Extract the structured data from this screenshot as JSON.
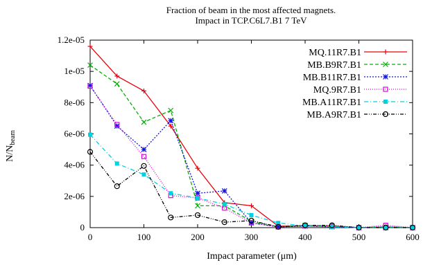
{
  "chart_data": {
    "type": "line",
    "title": "Fraction of beam in the most affected magnets.",
    "subtitle": "Impact in TCP.C6L7.B1 7 TeV",
    "xlabel": "Impact parameter (μm)",
    "ylabel": "N/N",
    "ylabel_sub": "beam",
    "xlim": [
      0,
      600
    ],
    "ylim": [
      0,
      1.2e-05
    ],
    "x_ticks": [
      0,
      100,
      200,
      300,
      400,
      500,
      600
    ],
    "x_tick_labels": [
      "0",
      "100",
      "200",
      "300",
      "400",
      "500",
      "600"
    ],
    "y_ticks": [
      0,
      2e-06,
      4e-06,
      6e-06,
      8e-06,
      1e-05,
      1.2e-05
    ],
    "y_tick_labels": [
      "0",
      "2e-06",
      "4e-06",
      "6e-06",
      "8e-06",
      "1e-05",
      "1.2e-05"
    ],
    "grid": false,
    "legend_position": "top-right",
    "x": [
      0,
      50,
      100,
      150,
      200,
      250,
      300,
      350,
      400,
      450,
      500,
      550,
      600
    ],
    "series": [
      {
        "name": "MQ.11R7.B1",
        "color": "#e8000b",
        "marker": "plus",
        "dash": "none",
        "values": [
          1.16e-05,
          9.7e-06,
          8.75e-06,
          6.5e-06,
          3.8e-06,
          1.6e-06,
          1.4e-06,
          1e-07,
          1e-07,
          1e-07,
          0.0,
          5e-08,
          0.0
        ]
      },
      {
        "name": "MB.B9R7.B1",
        "color": "#00b000",
        "marker": "x",
        "dash": "dash",
        "values": [
          1.04e-05,
          9.2e-06,
          6.75e-06,
          7.5e-06,
          1.4e-06,
          1.4e-06,
          4e-07,
          5e-08,
          1.5e-07,
          1e-07,
          0.0,
          5e-08,
          0.0
        ]
      },
      {
        "name": "MB.B11R7.B1",
        "color": "#1010e0",
        "marker": "asterisk",
        "dash": "dot",
        "values": [
          9.1e-06,
          6.5e-06,
          5e-06,
          6.85e-06,
          2.2e-06,
          2.35e-06,
          3e-07,
          5e-08,
          1e-07,
          5e-08,
          0.0,
          0.0,
          0.0
        ]
      },
      {
        "name": "MQ.9R7.B1",
        "color": "#e000e0",
        "marker": "square",
        "dash": "finedot",
        "values": [
          9.05e-06,
          6.6e-06,
          4.55e-06,
          2.05e-06,
          1.9e-06,
          1.25e-06,
          3e-07,
          5e-08,
          1e-07,
          1e-07,
          0.0,
          1.5e-07,
          0.0
        ]
      },
      {
        "name": "MB.A11R7.B1",
        "color": "#00d0e0",
        "marker": "filled-square",
        "dash": "dashdot",
        "values": [
          5.95e-06,
          4.1e-06,
          3.4e-06,
          2.2e-06,
          1.9e-06,
          1.5e-06,
          8e-07,
          3e-07,
          1e-07,
          5e-08,
          0.0,
          0.0,
          0.0
        ]
      },
      {
        "name": "MB.A9R7.B1",
        "color": "#000000",
        "marker": "circle",
        "dash": "dashdotdot",
        "values": [
          4.85e-06,
          2.65e-06,
          3.95e-06,
          6.5e-07,
          8e-07,
          3.5e-07,
          4.5e-07,
          5e-08,
          1.5e-07,
          1.5e-07,
          0.0,
          0.0,
          0.0
        ]
      }
    ]
  }
}
